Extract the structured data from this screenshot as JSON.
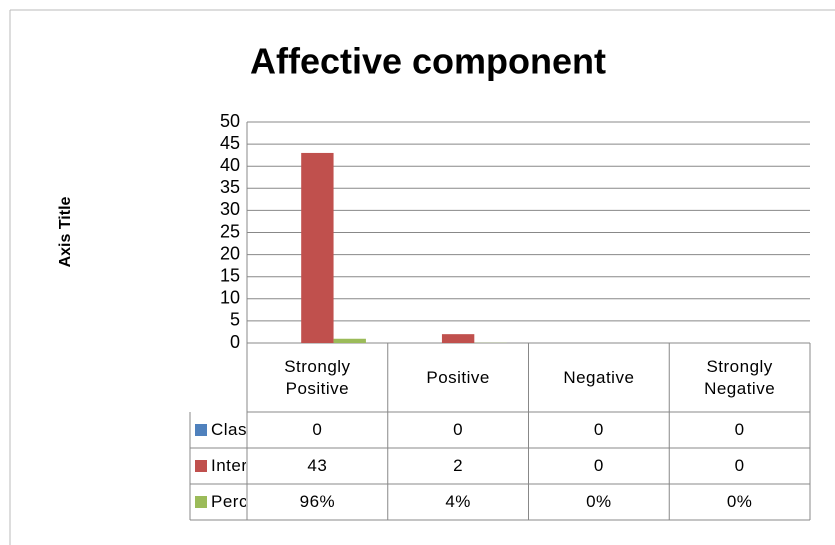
{
  "chart_data": {
    "type": "bar",
    "title": "Affective component",
    "y_axis_label": "Axis Title",
    "categories": [
      "Strongly Positive",
      "Positive",
      "Negative",
      "Strongly Negative"
    ],
    "series": [
      {
        "name": "Class Ilnterva",
        "color": "#4f81bd",
        "values": [
          0,
          0,
          0,
          0
        ]
      },
      {
        "name": "Interpretation",
        "color": "#c0504d",
        "values": [
          43,
          2,
          0,
          0
        ]
      },
      {
        "name": "Percentage",
        "color": "#9bbb59",
        "values": [
          0.96,
          0.04,
          0,
          0
        ],
        "value_labels": [
          "96%",
          "4%",
          "0%",
          "0%"
        ]
      }
    ],
    "ylim": [
      0,
      50
    ],
    "yticks": [
      0,
      5,
      10,
      15,
      20,
      25,
      30,
      35,
      40,
      45,
      50
    ],
    "grid": true
  }
}
